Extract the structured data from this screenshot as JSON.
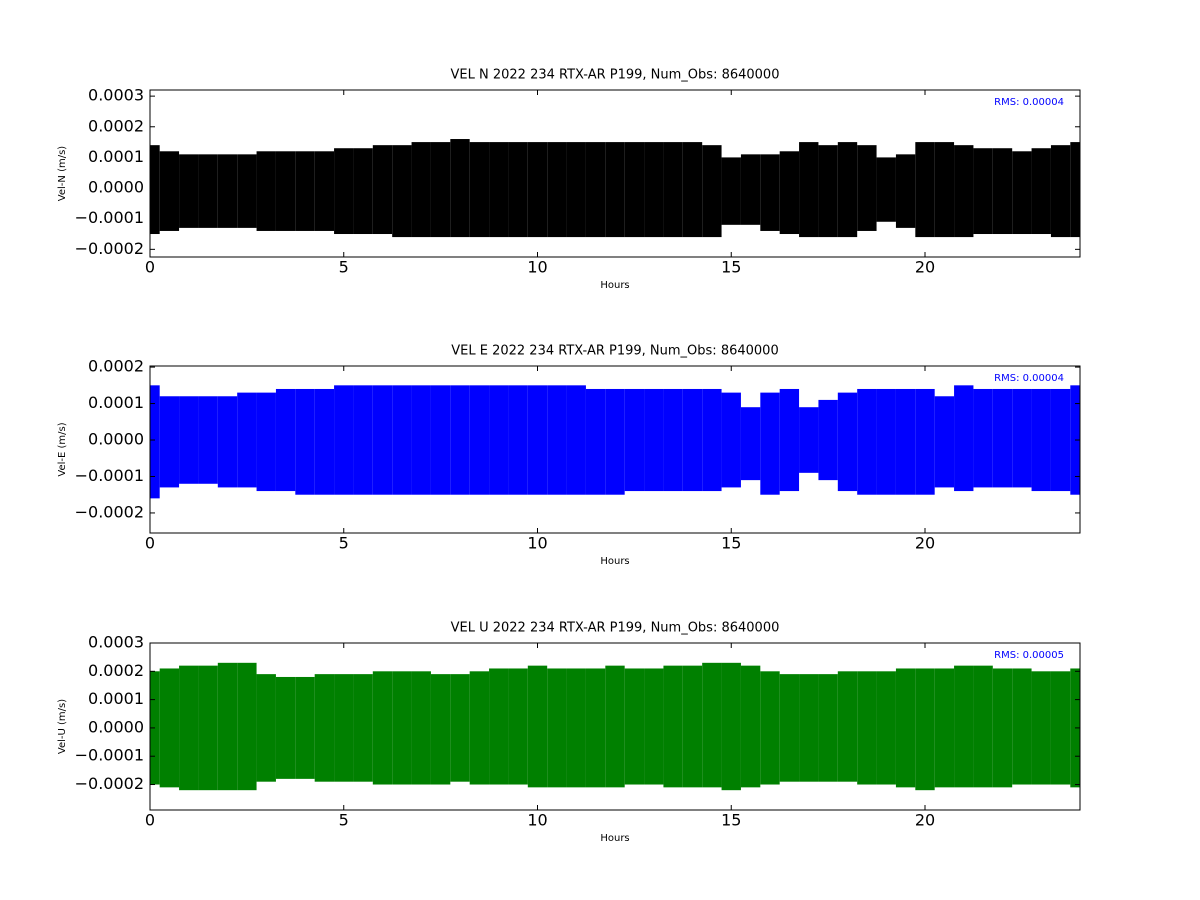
{
  "chart_data": [
    {
      "type": "band",
      "title": "VEL N 2022 234 RTX-AR  P199, Num_Obs: 8640000",
      "xlabel": "Hours",
      "ylabel": "Vel-N (m/s)",
      "annotation": "RMS:  0.00004",
      "annotation_color": "#0000ff",
      "color": "#000000",
      "xlim": [
        0,
        24
      ],
      "xticks": [
        0,
        5,
        10,
        15,
        20
      ],
      "ylim": [
        -0.000225,
        0.00032
      ],
      "yticks": [
        {
          "value": -0.0002,
          "label": "−0.0002"
        },
        {
          "value": -0.0001,
          "label": "−0.0001"
        },
        {
          "value": 0,
          "label": "0.0000"
        },
        {
          "value": 0.0001,
          "label": "0.0001"
        },
        {
          "value": 0.0002,
          "label": "0.0002"
        },
        {
          "value": 0.0003,
          "label": "0.0003"
        }
      ],
      "x": [
        0,
        0.5,
        1,
        1.5,
        2,
        2.5,
        3,
        3.5,
        4,
        4.5,
        5,
        5.5,
        6,
        6.5,
        7,
        7.5,
        8,
        8.5,
        9,
        9.5,
        10,
        10.5,
        11,
        11.5,
        12,
        12.5,
        13,
        13.5,
        14,
        14.5,
        15,
        15.5,
        16,
        16.5,
        17,
        17.5,
        18,
        18.5,
        19,
        19.5,
        20,
        20.5,
        21,
        21.5,
        22,
        22.5,
        23,
        23.5,
        24
      ],
      "high": [
        0.00014,
        0.00012,
        0.00011,
        0.00011,
        0.00011,
        0.00011,
        0.00012,
        0.00012,
        0.00012,
        0.00012,
        0.00013,
        0.00013,
        0.00014,
        0.00014,
        0.00015,
        0.00015,
        0.00016,
        0.00015,
        0.00015,
        0.00015,
        0.00015,
        0.00015,
        0.00015,
        0.00015,
        0.00015,
        0.00015,
        0.00015,
        0.00015,
        0.00015,
        0.00014,
        0.0001,
        0.00011,
        0.00011,
        0.00012,
        0.00015,
        0.00014,
        0.00015,
        0.00014,
        0.0001,
        0.00011,
        0.00015,
        0.00015,
        0.00014,
        0.00013,
        0.00013,
        0.00012,
        0.00013,
        0.00014,
        0.00015
      ],
      "low": [
        -0.00015,
        -0.00014,
        -0.00013,
        -0.00013,
        -0.00013,
        -0.00013,
        -0.00014,
        -0.00014,
        -0.00014,
        -0.00014,
        -0.00015,
        -0.00015,
        -0.00015,
        -0.00016,
        -0.00016,
        -0.00016,
        -0.00016,
        -0.00016,
        -0.00016,
        -0.00016,
        -0.00016,
        -0.00016,
        -0.00016,
        -0.00016,
        -0.00016,
        -0.00016,
        -0.00016,
        -0.00016,
        -0.00016,
        -0.00016,
        -0.00012,
        -0.00012,
        -0.00014,
        -0.00015,
        -0.00016,
        -0.00016,
        -0.00016,
        -0.00014,
        -0.00011,
        -0.00013,
        -0.00016,
        -0.00016,
        -0.00016,
        -0.00015,
        -0.00015,
        -0.00015,
        -0.00015,
        -0.00016,
        -0.00016
      ]
    },
    {
      "type": "band",
      "title": "VEL E 2022 234 RTX-AR  P199, Num_Obs: 8640000",
      "xlabel": "Hours",
      "ylabel": "Vel-E (m/s)",
      "annotation": "RMS:  0.00004",
      "annotation_color": "#0000ff",
      "color": "#0000ff",
      "xlim": [
        0,
        24
      ],
      "xticks": [
        0,
        5,
        10,
        15,
        20
      ],
      "ylim": [
        -0.000255,
        0.000203
      ],
      "yticks": [
        {
          "value": -0.0002,
          "label": "−0.0002"
        },
        {
          "value": -0.0001,
          "label": "−0.0001"
        },
        {
          "value": 0,
          "label": "0.0000"
        },
        {
          "value": 0.0001,
          "label": "0.0001"
        },
        {
          "value": 0.0002,
          "label": "0.0002"
        }
      ],
      "x": [
        0,
        0.5,
        1,
        1.5,
        2,
        2.5,
        3,
        3.5,
        4,
        4.5,
        5,
        5.5,
        6,
        6.5,
        7,
        7.5,
        8,
        8.5,
        9,
        9.5,
        10,
        10.5,
        11,
        11.5,
        12,
        12.5,
        13,
        13.5,
        14,
        14.5,
        15,
        15.5,
        16,
        16.5,
        17,
        17.5,
        18,
        18.5,
        19,
        19.5,
        20,
        20.5,
        21,
        21.5,
        22,
        22.5,
        23,
        23.5,
        24
      ],
      "high": [
        0.00015,
        0.00012,
        0.00012,
        0.00012,
        0.00012,
        0.00013,
        0.00013,
        0.00014,
        0.00014,
        0.00014,
        0.00015,
        0.00015,
        0.00015,
        0.00015,
        0.00015,
        0.00015,
        0.00015,
        0.00015,
        0.00015,
        0.00015,
        0.00015,
        0.00015,
        0.00015,
        0.00014,
        0.00014,
        0.00014,
        0.00014,
        0.00014,
        0.00014,
        0.00014,
        0.00013,
        9e-05,
        0.00013,
        0.00014,
        9e-05,
        0.00011,
        0.00013,
        0.00014,
        0.00014,
        0.00014,
        0.00014,
        0.00012,
        0.00015,
        0.00014,
        0.00014,
        0.00014,
        0.00014,
        0.00014,
        0.00015
      ],
      "low": [
        -0.00016,
        -0.00013,
        -0.00012,
        -0.00012,
        -0.00013,
        -0.00013,
        -0.00014,
        -0.00014,
        -0.00015,
        -0.00015,
        -0.00015,
        -0.00015,
        -0.00015,
        -0.00015,
        -0.00015,
        -0.00015,
        -0.00015,
        -0.00015,
        -0.00015,
        -0.00015,
        -0.00015,
        -0.00015,
        -0.00015,
        -0.00015,
        -0.00015,
        -0.00014,
        -0.00014,
        -0.00014,
        -0.00014,
        -0.00014,
        -0.00013,
        -0.00011,
        -0.00015,
        -0.00014,
        -9e-05,
        -0.00011,
        -0.00014,
        -0.00015,
        -0.00015,
        -0.00015,
        -0.00015,
        -0.00013,
        -0.00014,
        -0.00013,
        -0.00013,
        -0.00013,
        -0.00014,
        -0.00014,
        -0.00015
      ]
    },
    {
      "type": "band",
      "title": "VEL U 2022 234 RTX-AR  P199, Num_Obs: 8640000",
      "xlabel": "Hours",
      "ylabel": "Vel-U (m/s)",
      "annotation": "RMS:  0.00005",
      "annotation_color": "#0000ff",
      "color": "#008000",
      "xlim": [
        0,
        24
      ],
      "xticks": [
        0,
        5,
        10,
        15,
        20
      ],
      "ylim": [
        -0.00029,
        0.0003
      ],
      "yticks": [
        {
          "value": -0.0002,
          "label": "−0.0002"
        },
        {
          "value": -0.0001,
          "label": "−0.0001"
        },
        {
          "value": 0,
          "label": "0.0000"
        },
        {
          "value": 0.0001,
          "label": "0.0001"
        },
        {
          "value": 0.0002,
          "label": "0.0002"
        },
        {
          "value": 0.0003,
          "label": "0.0003"
        }
      ],
      "x": [
        0,
        0.5,
        1,
        1.5,
        2,
        2.5,
        3,
        3.5,
        4,
        4.5,
        5,
        5.5,
        6,
        6.5,
        7,
        7.5,
        8,
        8.5,
        9,
        9.5,
        10,
        10.5,
        11,
        11.5,
        12,
        12.5,
        13,
        13.5,
        14,
        14.5,
        15,
        15.5,
        16,
        16.5,
        17,
        17.5,
        18,
        18.5,
        19,
        19.5,
        20,
        20.5,
        21,
        21.5,
        22,
        22.5,
        23,
        23.5,
        24
      ],
      "high": [
        0.0002,
        0.00021,
        0.00022,
        0.00022,
        0.00023,
        0.00023,
        0.00019,
        0.00018,
        0.00018,
        0.00019,
        0.00019,
        0.00019,
        0.0002,
        0.0002,
        0.0002,
        0.00019,
        0.00019,
        0.0002,
        0.00021,
        0.00021,
        0.00022,
        0.00021,
        0.00021,
        0.00021,
        0.00022,
        0.00021,
        0.00021,
        0.00022,
        0.00022,
        0.00023,
        0.00023,
        0.00022,
        0.0002,
        0.00019,
        0.00019,
        0.00019,
        0.0002,
        0.0002,
        0.0002,
        0.00021,
        0.00021,
        0.00021,
        0.00022,
        0.00022,
        0.00021,
        0.00021,
        0.0002,
        0.0002,
        0.00021
      ],
      "low": [
        -0.0002,
        -0.00021,
        -0.00022,
        -0.00022,
        -0.00022,
        -0.00022,
        -0.00019,
        -0.00018,
        -0.00018,
        -0.00019,
        -0.00019,
        -0.00019,
        -0.0002,
        -0.0002,
        -0.0002,
        -0.0002,
        -0.00019,
        -0.0002,
        -0.0002,
        -0.0002,
        -0.00021,
        -0.00021,
        -0.00021,
        -0.00021,
        -0.00021,
        -0.0002,
        -0.0002,
        -0.00021,
        -0.00021,
        -0.00021,
        -0.00022,
        -0.00021,
        -0.0002,
        -0.00019,
        -0.00019,
        -0.00019,
        -0.00019,
        -0.0002,
        -0.0002,
        -0.00021,
        -0.00022,
        -0.00021,
        -0.00021,
        -0.00021,
        -0.00021,
        -0.0002,
        -0.0002,
        -0.0002,
        -0.00021
      ]
    }
  ]
}
